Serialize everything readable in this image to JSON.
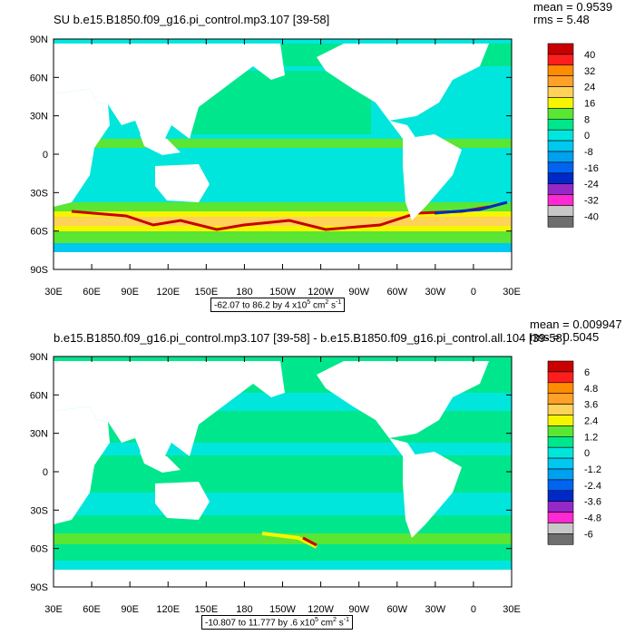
{
  "panels": [
    {
      "title": "SU b.e15.B1850.f09_g16.pi_control.mp3.107 [39-58]",
      "mean_text": "mean = 0.9539",
      "rms_text": "rms = 5.48",
      "range_prefix": "-62.07 to 86.2 by 4 x10",
      "range_units": "cm",
      "colorbar_labels": [
        "40",
        "32",
        "24",
        "16",
        "8",
        "0",
        "-8",
        "-16",
        "-24",
        "-32",
        "-40"
      ],
      "colors": [
        "#c80000",
        "#ff1e1e",
        "#ff8c00",
        "#ffa028",
        "#ffd25a",
        "#f5f500",
        "#5ae632",
        "#00e68c",
        "#00e6dc",
        "#00c8f0",
        "#00a0f0",
        "#0064f0",
        "#0028c8",
        "#9628c8",
        "#ff28d2",
        "#c8c8c8",
        "#6e6e6e"
      ]
    },
    {
      "title": "b.e15.B1850.f09_g16.pi_control.mp3.107 [39-58] - b.e15.B1850.f09_g16.pi_control.all.104 [39-58]",
      "mean_text": "mean = 0.009947",
      "rms_text": "rms = 0.5045",
      "range_prefix": "-10.807 to 11.777 by .6 x10",
      "range_units": "cm",
      "colorbar_labels": [
        "6",
        "4.8",
        "3.6",
        "2.4",
        "1.2",
        "0",
        "-1.2",
        "-2.4",
        "-3.6",
        "-4.8",
        "-6"
      ],
      "colors": [
        "#c80000",
        "#ff1e1e",
        "#ff8c00",
        "#ffa028",
        "#ffd25a",
        "#f5f500",
        "#5ae632",
        "#00e68c",
        "#00e6dc",
        "#00c8f0",
        "#00a0f0",
        "#0064f0",
        "#0028c8",
        "#9628c8",
        "#ff28d2",
        "#c8c8c8",
        "#6e6e6e"
      ]
    }
  ],
  "lat_labels": [
    "90N",
    "60N",
    "30N",
    "0",
    "30S",
    "60S",
    "90S"
  ],
  "lon_labels": [
    "30E",
    "60E",
    "90E",
    "120E",
    "150E",
    "180",
    "150W",
    "120W",
    "90W",
    "60W",
    "30W",
    "0",
    "30E"
  ]
}
